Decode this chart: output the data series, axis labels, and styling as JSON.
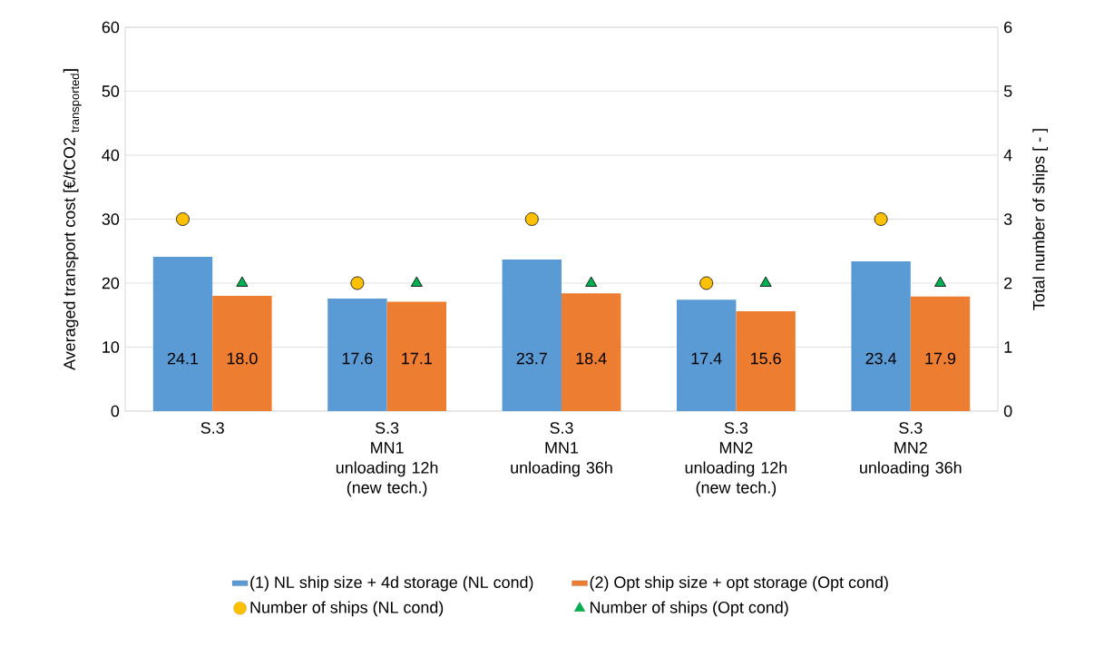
{
  "chart_data": {
    "type": "bar",
    "categories": [
      "S.3",
      "S.3\nMN1\nunloading 12h\n(new tech.)",
      "S.3\nMN1\nunloading 36h",
      "S.3\nMN2\nunloading 12h\n(new tech.)",
      "S.3\nMN2\nunloading 36h"
    ],
    "ylabel": "\\mbox{Averaged transport cost [€/tCO2 }_{\\mbox{\\fontsize{13}{13}\\selectfont transported}}\\mbox{]}",
    "y2label": "Total number of ships [ - ]",
    "ylim": [
      0,
      60
    ],
    "yticks": [
      0,
      10,
      20,
      30,
      40,
      50,
      60
    ],
    "y2lim": [
      0,
      6
    ],
    "y2ticks": [
      0,
      1,
      2,
      3,
      4,
      5,
      6
    ],
    "grid": "y",
    "legend": "bottom",
    "series": [
      {
        "name": "(1) NL ship size + 4d storage (NL cond)",
        "color": "#5b9bd5",
        "values": [
          24.1,
          17.6,
          23.7,
          17.4,
          23.4
        ],
        "value_labels": [
          "24.1",
          "17.6",
          "23.7",
          "17.4",
          "23.4"
        ]
      },
      {
        "name": "(2) Opt ship size + opt storage (Opt cond)",
        "color": "#ed7d31",
        "values": [
          18.0,
          17.1,
          18.4,
          15.6,
          17.9
        ],
        "value_labels": [
          "18.0",
          "17.1",
          "18.4",
          "15.6",
          "17.9"
        ]
      },
      {
        "name": "Number of ships (NL cond)",
        "type": "scatter",
        "axis": "y2",
        "marker": "circle",
        "color": "#ffc000",
        "values": [
          3,
          2,
          3,
          2,
          3
        ]
      },
      {
        "name": "Number of ships (Opt cond)",
        "type": "scatter",
        "axis": "y2",
        "marker": "triangle",
        "color": "#00b050",
        "values": [
          2,
          2,
          2,
          2,
          2
        ]
      }
    ]
  }
}
